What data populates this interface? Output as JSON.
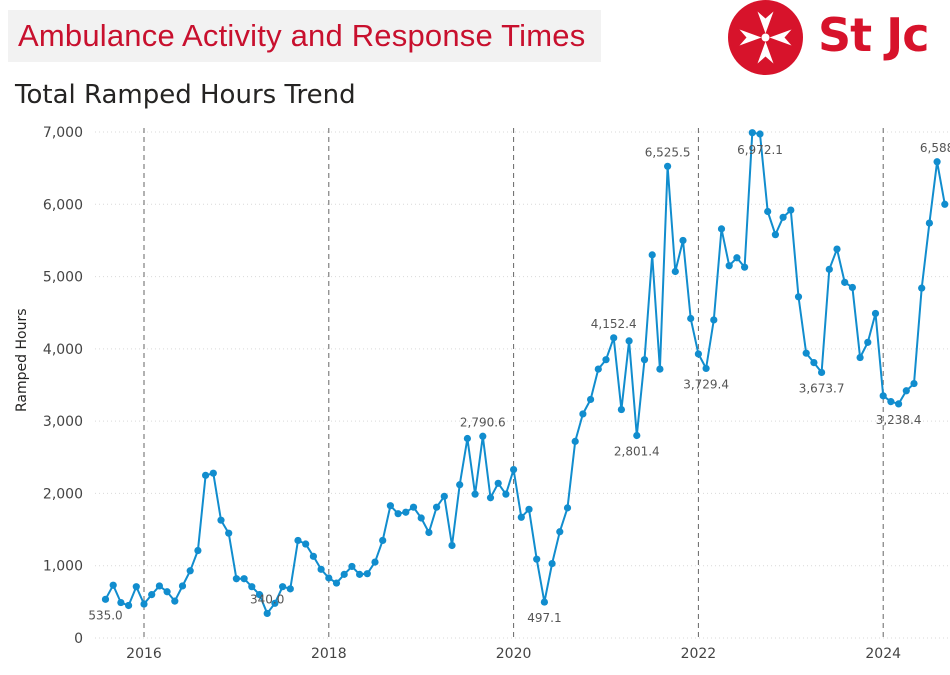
{
  "header": {
    "banner_title": "Ambulance Activity and Response Times",
    "logo_text": "St Jc",
    "brand_color": "#d7132b"
  },
  "chart_data": {
    "type": "line",
    "title": "Total Ramped Hours Trend",
    "xlabel": "",
    "ylabel": "Ramped Hours",
    "ylim": [
      0,
      7000
    ],
    "xlim": [
      "2015-07",
      "2024-12"
    ],
    "y_ticks": [
      "0",
      "1,000",
      "2,000",
      "3,000",
      "4,000",
      "5,000",
      "6,000",
      "7,000"
    ],
    "x_ticks": [
      "2016",
      "2018",
      "2020",
      "2022",
      "2024"
    ],
    "grid": "horizontal dotted",
    "year_dividers": "dashed vertical lines at each January",
    "line_color": "#118dce",
    "series": [
      {
        "points": [
          [
            "2015-08",
            535.0
          ],
          [
            "2015-09",
            730
          ],
          [
            "2015-10",
            490
          ],
          [
            "2015-11",
            450
          ],
          [
            "2015-12",
            710
          ],
          [
            "2016-01",
            470
          ],
          [
            "2016-02",
            600
          ],
          [
            "2016-03",
            720
          ],
          [
            "2016-04",
            640
          ],
          [
            "2016-05",
            510
          ],
          [
            "2016-06",
            720
          ],
          [
            "2016-07",
            930
          ],
          [
            "2016-08",
            1210
          ],
          [
            "2016-09",
            2250
          ],
          [
            "2016-10",
            2280
          ],
          [
            "2016-11",
            1630
          ],
          [
            "2016-12",
            1450
          ],
          [
            "2017-01",
            820
          ],
          [
            "2017-02",
            820
          ],
          [
            "2017-03",
            710
          ],
          [
            "2017-04",
            600
          ],
          [
            "2017-05",
            340.0
          ],
          [
            "2017-06",
            480
          ],
          [
            "2017-07",
            710
          ],
          [
            "2017-08",
            680
          ],
          [
            "2017-09",
            1350
          ],
          [
            "2017-10",
            1300
          ],
          [
            "2017-11",
            1130
          ],
          [
            "2017-12",
            950
          ],
          [
            "2018-01",
            830
          ],
          [
            "2018-02",
            760
          ],
          [
            "2018-03",
            880
          ],
          [
            "2018-04",
            990
          ],
          [
            "2018-05",
            880
          ],
          [
            "2018-06",
            890
          ],
          [
            "2018-07",
            1050
          ],
          [
            "2018-08",
            1350
          ],
          [
            "2018-09",
            1830
          ],
          [
            "2018-10",
            1720
          ],
          [
            "2018-11",
            1740
          ],
          [
            "2018-12",
            1810
          ],
          [
            "2019-01",
            1660
          ],
          [
            "2019-02",
            1460
          ],
          [
            "2019-03",
            1810
          ],
          [
            "2019-04",
            1960
          ],
          [
            "2019-05",
            1280
          ],
          [
            "2019-06",
            2120
          ],
          [
            "2019-07",
            2760
          ],
          [
            "2019-08",
            1990
          ],
          [
            "2019-09",
            2790.6
          ],
          [
            "2019-10",
            1940
          ],
          [
            "2019-11",
            2140
          ],
          [
            "2019-12",
            1990
          ],
          [
            "2020-01",
            2330
          ],
          [
            "2020-02",
            1670
          ],
          [
            "2020-03",
            1780
          ],
          [
            "2020-04",
            1090
          ],
          [
            "2020-05",
            497.1
          ],
          [
            "2020-06",
            1030
          ],
          [
            "2020-07",
            1470
          ],
          [
            "2020-08",
            1800
          ],
          [
            "2020-09",
            2720
          ],
          [
            "2020-10",
            3100
          ],
          [
            "2020-11",
            3300
          ],
          [
            "2020-12",
            3720
          ],
          [
            "2021-01",
            3850
          ],
          [
            "2021-02",
            4152.4
          ],
          [
            "2021-03",
            3160
          ],
          [
            "2021-04",
            4110
          ],
          [
            "2021-05",
            2801.4
          ],
          [
            "2021-06",
            3850
          ],
          [
            "2021-07",
            5300
          ],
          [
            "2021-08",
            3720
          ],
          [
            "2021-09",
            6525.5
          ],
          [
            "2021-10",
            5070
          ],
          [
            "2021-11",
            5500
          ],
          [
            "2021-12",
            4420
          ],
          [
            "2022-01",
            3930
          ],
          [
            "2022-02",
            3729.4
          ],
          [
            "2022-03",
            4400
          ],
          [
            "2022-04",
            5660
          ],
          [
            "2022-05",
            5150
          ],
          [
            "2022-06",
            5260
          ],
          [
            "2022-07",
            5130
          ],
          [
            "2022-08",
            6990
          ],
          [
            "2022-09",
            6972.1
          ],
          [
            "2022-10",
            5900
          ],
          [
            "2022-11",
            5580
          ],
          [
            "2022-12",
            5820
          ],
          [
            "2023-01",
            5920
          ],
          [
            "2023-02",
            4720
          ],
          [
            "2023-03",
            3940
          ],
          [
            "2023-04",
            3810
          ],
          [
            "2023-05",
            3673.7
          ],
          [
            "2023-06",
            5100
          ],
          [
            "2023-07",
            5380
          ],
          [
            "2023-08",
            4920
          ],
          [
            "2023-09",
            4850
          ],
          [
            "2023-10",
            3880
          ],
          [
            "2023-11",
            4090
          ],
          [
            "2023-12",
            4490
          ],
          [
            "2024-01",
            3350
          ],
          [
            "2024-02",
            3270
          ],
          [
            "2024-03",
            3238.4
          ],
          [
            "2024-04",
            3420
          ],
          [
            "2024-05",
            3520
          ],
          [
            "2024-06",
            4840
          ],
          [
            "2024-07",
            5740
          ],
          [
            "2024-08",
            6588
          ],
          [
            "2024-09",
            6000
          ]
        ]
      }
    ],
    "data_labels": [
      {
        "x": "2015-08",
        "text": "535.0",
        "position": "below"
      },
      {
        "x": "2017-05",
        "text": "340.0",
        "position": "above"
      },
      {
        "x": "2019-09",
        "text": "2,790.6",
        "position": "above"
      },
      {
        "x": "2020-05",
        "text": "497.1",
        "position": "below"
      },
      {
        "x": "2021-02",
        "text": "4,152.4",
        "position": "above"
      },
      {
        "x": "2021-05",
        "text": "2,801.4",
        "position": "below"
      },
      {
        "x": "2021-09",
        "text": "6,525.5",
        "position": "above"
      },
      {
        "x": "2022-02",
        "text": "3,729.4",
        "position": "below"
      },
      {
        "x": "2022-09",
        "text": "6,972.1",
        "position": "below"
      },
      {
        "x": "2023-05",
        "text": "3,673.7",
        "position": "below"
      },
      {
        "x": "2024-03",
        "text": "3,238.4",
        "position": "below"
      },
      {
        "x": "2024-08",
        "text": "6,588",
        "position": "above"
      }
    ]
  }
}
